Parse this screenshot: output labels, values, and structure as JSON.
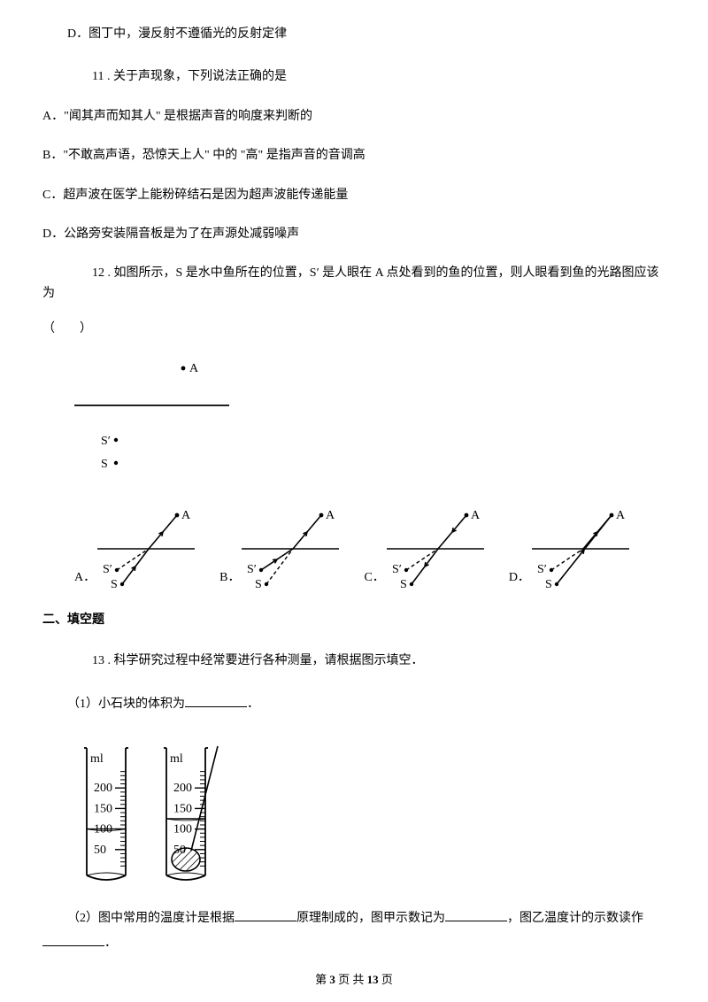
{
  "d_opt": "D．图丁中，漫反射不遵循光的反射定律",
  "q11": {
    "stem": "11 . 关于声现象，下列说法正确的是",
    "a": "A．\"闻其声而知其人\" 是根据声音的响度来判断的",
    "b": "B．\"不敢高声语，恐惊天上人\" 中的 \"高\" 是指声音的音调高",
    "c": "C．超声波在医学上能粉碎结石是因为超声波能传递能量",
    "d": "D．公路旁安装隔音板是为了在声源处减弱噪声"
  },
  "q12": {
    "stem_a": "12 . 如图所示，S 是水中鱼所在的位置，S′ 是人眼在 A 点处看到的鱼的位置，则人眼看到鱼的光路图应该为",
    "stem_b": "（　　）",
    "labels": {
      "a": "A．",
      "b": "B．",
      "c": "C．",
      "d": "D．"
    },
    "diagram": {
      "stroke": "#000000",
      "font": "italic 13px serif",
      "labels": {
        "a": "A",
        "sp": "S′",
        "s": "S"
      }
    }
  },
  "section2": "二、填空题",
  "q13": {
    "stem": "13 . 科学研究过程中经常要进行各种测量，请根据图示填空．",
    "p1a": "（1）小石块的体积为",
    "p1b": "．",
    "p2a": "（2）图中常用的温度计是根据",
    "p2b": "原理制成的，图甲示数记为",
    "p2c": "，图乙温度计的示数读作",
    "p2d": "．",
    "cylinder": {
      "unit": "ml",
      "ticks": [
        50,
        100,
        150,
        200
      ],
      "left_level": 100,
      "right_level": 125,
      "stroke": "#000000"
    }
  },
  "footer": {
    "a": "第 ",
    "b": "3",
    "c": " 页 共 ",
    "d": "13",
    "e": " 页"
  }
}
